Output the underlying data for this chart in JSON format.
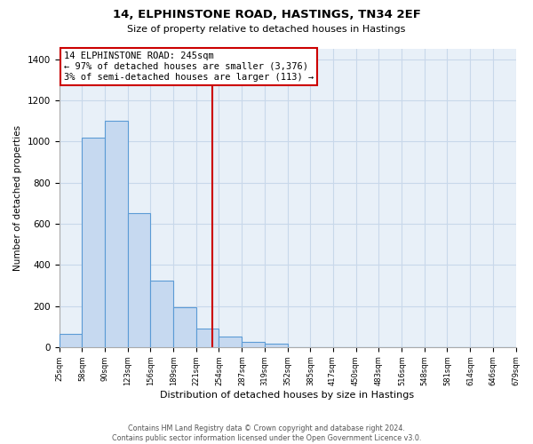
{
  "title": "14, ELPHINSTONE ROAD, HASTINGS, TN34 2EF",
  "subtitle": "Size of property relative to detached houses in Hastings",
  "xlabel": "Distribution of detached houses by size in Hastings",
  "ylabel": "Number of detached properties",
  "bar_edges": [
    25,
    58,
    90,
    123,
    156,
    189,
    221,
    254,
    287,
    319,
    352,
    385,
    417,
    450,
    483,
    516,
    548,
    581,
    614,
    646,
    679
  ],
  "bar_heights": [
    65,
    1020,
    1100,
    650,
    325,
    195,
    90,
    50,
    25,
    15,
    0,
    0,
    0,
    0,
    0,
    0,
    0,
    0,
    0,
    0
  ],
  "bar_color": "#c6d9f0",
  "bar_edgecolor": "#5b9bd5",
  "property_line_x": 245,
  "property_line_color": "#cc0000",
  "annotation_line1": "14 ELPHINSTONE ROAD: 245sqm",
  "annotation_line2": "← 97% of detached houses are smaller (3,376)",
  "annotation_line3": "3% of semi-detached houses are larger (113) →",
  "annotation_box_facecolor": "#ffffff",
  "annotation_box_edgecolor": "#cc0000",
  "ylim": [
    0,
    1450
  ],
  "yticks": [
    0,
    200,
    400,
    600,
    800,
    1000,
    1200,
    1400
  ],
  "footer_line1": "Contains HM Land Registry data © Crown copyright and database right 2024.",
  "footer_line2": "Contains public sector information licensed under the Open Government Licence v3.0.",
  "bg_color": "#ffffff",
  "plot_bg_color": "#e8f0f8",
  "grid_color": "#c8d8ea",
  "tick_labels": [
    "25sqm",
    "58sqm",
    "90sqm",
    "123sqm",
    "156sqm",
    "189sqm",
    "221sqm",
    "254sqm",
    "287sqm",
    "319sqm",
    "352sqm",
    "385sqm",
    "417sqm",
    "450sqm",
    "483sqm",
    "516sqm",
    "548sqm",
    "581sqm",
    "614sqm",
    "646sqm",
    "679sqm"
  ]
}
